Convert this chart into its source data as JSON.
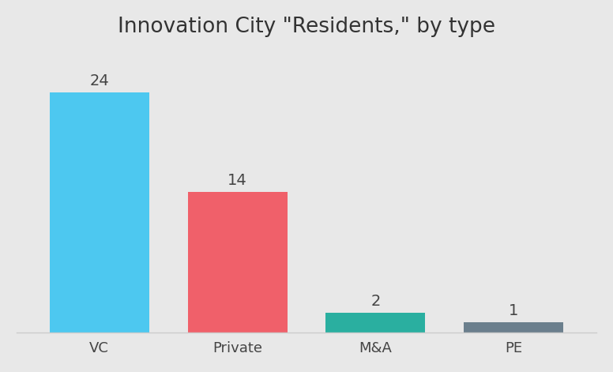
{
  "title": "Innovation City \"Residents,\" by type",
  "categories": [
    "VC",
    "Private",
    "M&A",
    "PE"
  ],
  "values": [
    24,
    14,
    2,
    1
  ],
  "bar_colors": [
    "#4DC8F0",
    "#F0606A",
    "#2AAFA0",
    "#6B7F8D"
  ],
  "background_color": "#E8E8E8",
  "title_fontsize": 19,
  "label_fontsize": 14,
  "tick_fontsize": 13,
  "ylim": [
    0,
    28
  ],
  "bar_width": 0.72
}
